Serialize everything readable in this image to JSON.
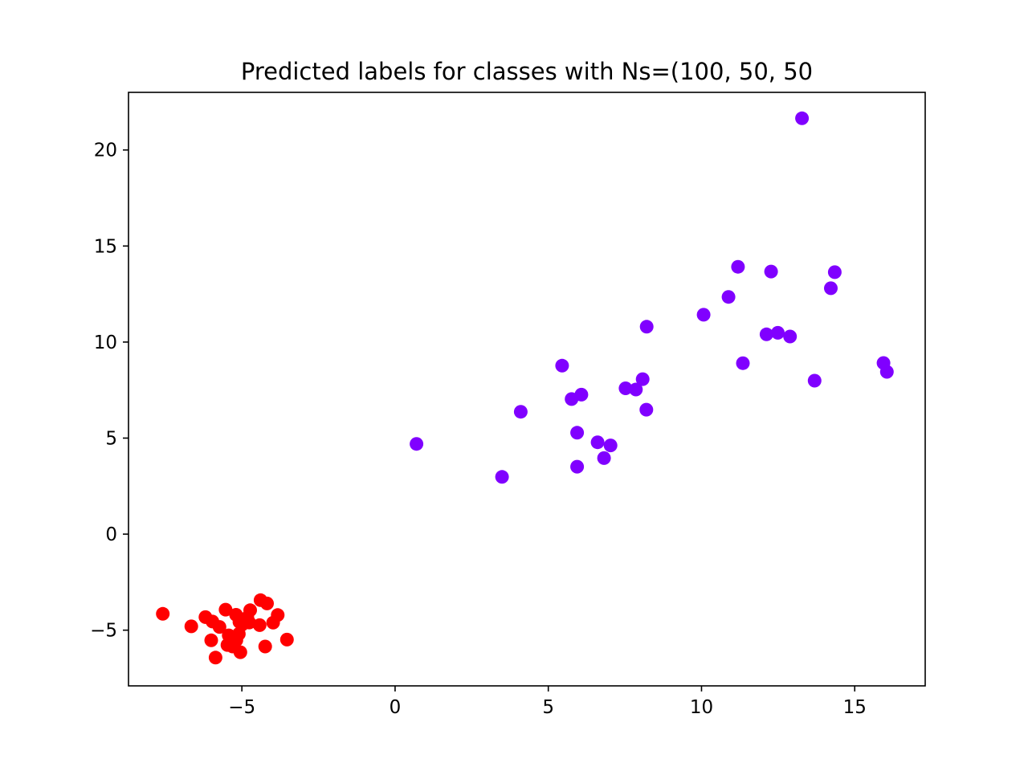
{
  "chart_data": {
    "type": "scatter",
    "title": "Predicted labels for classes with Ns=(100, 50, 50",
    "xlabel": "",
    "ylabel": "",
    "xlim": [
      -8.7,
      17.3
    ],
    "ylim": [
      -7.9,
      23.0
    ],
    "xticks": [
      -5,
      0,
      5,
      10,
      15
    ],
    "yticks": [
      -5,
      0,
      5,
      10,
      15,
      20
    ],
    "xtick_labels": [
      "−5",
      "0",
      "5",
      "10",
      "15"
    ],
    "ytick_labels": [
      "−5",
      "0",
      "5",
      "10",
      "15",
      "20"
    ],
    "grid": false,
    "legend": "none",
    "series": [
      {
        "color": "#8000ff",
        "points": [
          [
            13.28,
            21.65
          ],
          [
            11.19,
            13.92
          ],
          [
            12.27,
            13.67
          ],
          [
            14.35,
            13.64
          ],
          [
            14.22,
            12.8
          ],
          [
            10.88,
            12.35
          ],
          [
            10.07,
            11.42
          ],
          [
            8.21,
            10.8
          ],
          [
            12.49,
            10.48
          ],
          [
            12.12,
            10.4
          ],
          [
            12.89,
            10.29
          ],
          [
            11.35,
            8.9
          ],
          [
            15.94,
            8.91
          ],
          [
            16.05,
            8.45
          ],
          [
            13.69,
            7.99
          ],
          [
            5.45,
            8.77
          ],
          [
            8.08,
            8.07
          ],
          [
            7.52,
            7.59
          ],
          [
            7.86,
            7.53
          ],
          [
            6.08,
            7.26
          ],
          [
            5.76,
            7.03
          ],
          [
            4.1,
            6.37
          ],
          [
            8.2,
            6.48
          ],
          [
            5.94,
            5.28
          ],
          [
            6.61,
            4.78
          ],
          [
            7.03,
            4.62
          ],
          [
            0.7,
            4.7
          ],
          [
            6.82,
            3.96
          ],
          [
            5.94,
            3.51
          ],
          [
            3.49,
            2.98
          ]
        ]
      },
      {
        "color": "#ff0000",
        "points": [
          [
            -7.58,
            -4.15
          ],
          [
            -6.65,
            -4.8
          ],
          [
            -6.19,
            -4.32
          ],
          [
            -5.96,
            -4.55
          ],
          [
            -5.73,
            -4.83
          ],
          [
            -5.53,
            -3.93
          ],
          [
            -5.19,
            -4.2
          ],
          [
            -5.08,
            -4.57
          ],
          [
            -4.82,
            -4.34
          ],
          [
            -4.73,
            -3.96
          ],
          [
            -4.39,
            -3.44
          ],
          [
            -4.18,
            -3.61
          ],
          [
            -3.98,
            -4.61
          ],
          [
            -3.83,
            -4.21
          ],
          [
            -4.42,
            -4.74
          ],
          [
            -4.76,
            -4.6
          ],
          [
            -5.0,
            -4.72
          ],
          [
            -5.43,
            -5.27
          ],
          [
            -5.1,
            -5.2
          ],
          [
            -5.18,
            -5.52
          ],
          [
            -6.0,
            -5.53
          ],
          [
            -5.47,
            -5.77
          ],
          [
            -5.3,
            -5.85
          ],
          [
            -5.05,
            -6.15
          ],
          [
            -4.24,
            -5.85
          ],
          [
            -3.53,
            -5.49
          ],
          [
            -5.86,
            -6.43
          ]
        ]
      }
    ]
  }
}
